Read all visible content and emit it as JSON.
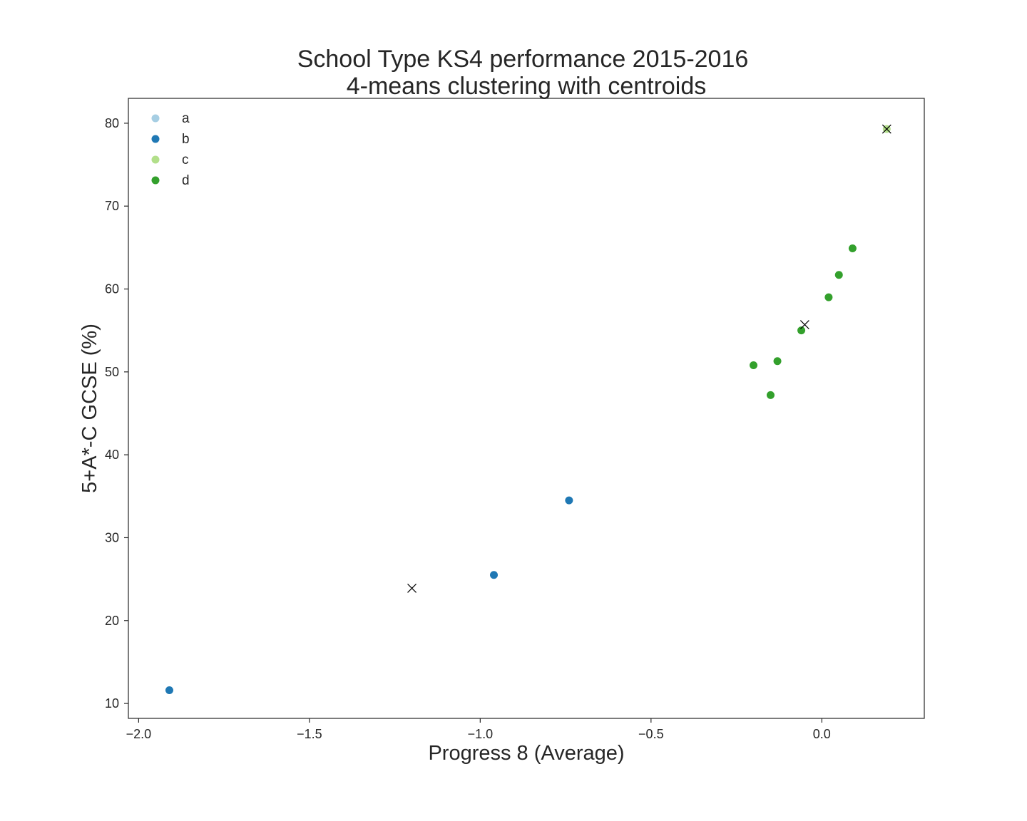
{
  "chart_data": {
    "type": "scatter",
    "title": "School Type KS4 performance 2015-2016",
    "subtitle": "4-means clustering with centroids",
    "xlabel": "Progress 8 (Average)",
    "ylabel": "5+A*-C GCSE (%)",
    "xlim": [
      -2.03,
      0.3
    ],
    "ylim": [
      8.2,
      83.0
    ],
    "x_ticks": [
      -2.0,
      -1.5,
      -1.0,
      -0.5,
      0.0
    ],
    "x_tick_labels": [
      "−2.0",
      "−1.5",
      "−1.0",
      "−0.5",
      "0.0"
    ],
    "y_ticks": [
      10,
      20,
      30,
      40,
      50,
      60,
      70,
      80
    ],
    "y_tick_labels": [
      "10",
      "20",
      "30",
      "40",
      "50",
      "60",
      "70",
      "80"
    ],
    "grid": false,
    "legend_position": "top-left",
    "series": [
      {
        "name": "a",
        "color": "#a6cee3",
        "points": []
      },
      {
        "name": "b",
        "color": "#1f78b4",
        "points": [
          {
            "x": -1.91,
            "y": 11.6
          },
          {
            "x": -0.96,
            "y": 25.5
          },
          {
            "x": -0.74,
            "y": 34.5
          }
        ]
      },
      {
        "name": "c",
        "color": "#b2df8a",
        "points": [
          {
            "x": 0.19,
            "y": 79.3
          }
        ]
      },
      {
        "name": "d",
        "color": "#33a02c",
        "points": [
          {
            "x": -0.2,
            "y": 50.8
          },
          {
            "x": -0.15,
            "y": 47.2
          },
          {
            "x": -0.13,
            "y": 51.3
          },
          {
            "x": -0.06,
            "y": 55.0
          },
          {
            "x": 0.02,
            "y": 59.0
          },
          {
            "x": 0.05,
            "y": 61.7
          },
          {
            "x": 0.09,
            "y": 64.9
          }
        ]
      }
    ],
    "centroids": [
      {
        "x": -1.2,
        "y": 23.9
      },
      {
        "x": -0.05,
        "y": 55.7
      },
      {
        "x": 0.19,
        "y": 79.3
      }
    ],
    "centroid_color": "#000000"
  }
}
